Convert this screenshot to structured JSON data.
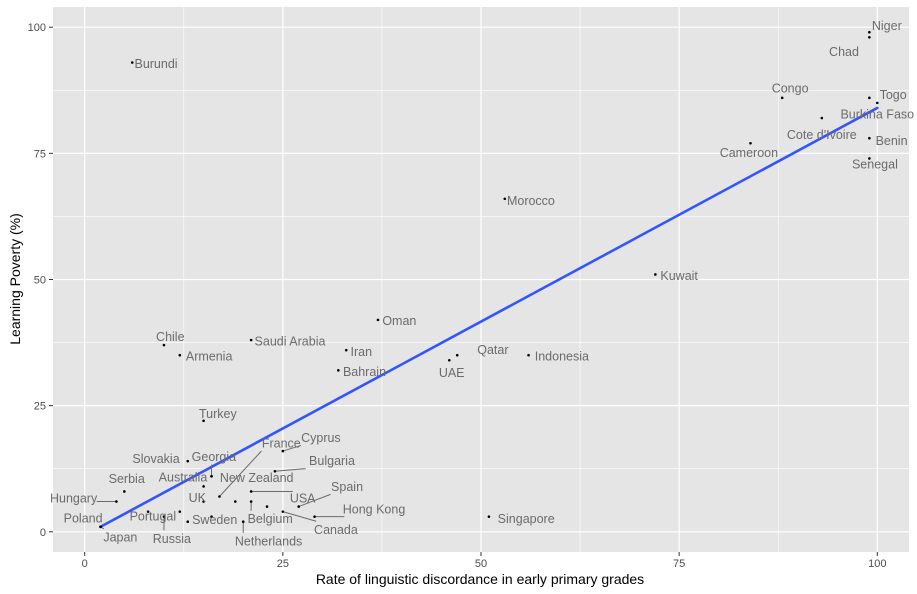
{
  "chart_data": {
    "type": "scatter",
    "xlabel": "Rate of linguistic discordance in early primary grades",
    "ylabel": "Learning Poverty (%)",
    "xlim": [
      -4,
      104
    ],
    "ylim": [
      -4,
      104
    ],
    "xticks": [
      0,
      25,
      50,
      75,
      100
    ],
    "yticks": [
      0,
      25,
      50,
      75,
      100
    ],
    "grid": true,
    "panel_background": "#e5e5e5",
    "grid_color": "#ffffff",
    "point_color": "#000000",
    "label_color": "#6b6b6b",
    "trend_line": {
      "color": "#3355ff",
      "x": [
        2,
        100
      ],
      "y": [
        1,
        84
      ]
    },
    "points": [
      {
        "label": "Niger",
        "x": 99,
        "y": 99,
        "lx": 101.2,
        "ly": 100.3,
        "leader": false
      },
      {
        "label": "Chad",
        "x": 99,
        "y": 98,
        "lx": 95.8,
        "ly": 95.2,
        "leader": false
      },
      {
        "label": "Burundi",
        "x": 6,
        "y": 93,
        "lx": 9.0,
        "ly": 92.8,
        "leader": false
      },
      {
        "label": "Congo",
        "x": 88,
        "y": 86,
        "lx": 89.0,
        "ly": 87.9,
        "leader": false
      },
      {
        "label": "Togo",
        "x": 99,
        "y": 86,
        "lx": 102.0,
        "ly": 86.7,
        "leader": false
      },
      {
        "label": "Burkina Faso",
        "x": 93,
        "y": 82,
        "lx": 100.0,
        "ly": 82.8,
        "leader": false
      },
      {
        "label": "Cote d'Ivoire",
        "x": 100,
        "y": 85,
        "lx": 93.0,
        "ly": 78.7,
        "leader": false
      },
      {
        "label": "Benin",
        "x": 99,
        "y": 78,
        "lx": 101.8,
        "ly": 77.5,
        "leader": false
      },
      {
        "label": "Cameroon",
        "x": 84,
        "y": 77,
        "lx": 83.8,
        "ly": 75.2,
        "leader": false
      },
      {
        "label": "Senegal",
        "x": 99,
        "y": 74,
        "lx": 99.7,
        "ly": 72.9,
        "leader": false
      },
      {
        "label": "Morocco",
        "x": 53,
        "y": 66,
        "lx": 56.3,
        "ly": 65.7,
        "leader": false
      },
      {
        "label": "Kuwait",
        "x": 72,
        "y": 51,
        "lx": 75.0,
        "ly": 50.8,
        "leader": false
      },
      {
        "label": "Oman",
        "x": 37,
        "y": 42,
        "lx": 39.7,
        "ly": 41.9,
        "leader": false
      },
      {
        "label": "Saudi Arabia",
        "x": 21,
        "y": 38,
        "lx": 25.9,
        "ly": 37.8,
        "leader": false
      },
      {
        "label": "Chile",
        "x": 10,
        "y": 37,
        "lx": 10.8,
        "ly": 38.7,
        "leader": false
      },
      {
        "label": "Iran",
        "x": 33,
        "y": 36,
        "lx": 34.9,
        "ly": 35.7,
        "leader": false
      },
      {
        "label": "Armenia",
        "x": 12,
        "y": 35,
        "lx": 15.7,
        "ly": 34.8,
        "leader": false
      },
      {
        "label": "Qatar",
        "x": 47,
        "y": 35,
        "lx": 51.5,
        "ly": 36.1,
        "leader": false
      },
      {
        "label": "Indonesia",
        "x": 56,
        "y": 35,
        "lx": 60.2,
        "ly": 34.8,
        "leader": false
      },
      {
        "label": "UAE",
        "x": 46,
        "y": 34,
        "lx": 46.3,
        "ly": 31.6,
        "leader": false
      },
      {
        "label": "Bahrain",
        "x": 32,
        "y": 32,
        "lx": 35.3,
        "ly": 31.8,
        "leader": false
      },
      {
        "label": "Turkey",
        "x": 15,
        "y": 22,
        "lx": 16.8,
        "ly": 23.4,
        "leader": false
      },
      {
        "label": "Cyprus",
        "x": 25,
        "y": 16,
        "lx": 29.8,
        "ly": 18.7,
        "leader": true
      },
      {
        "label": "France",
        "x": 17,
        "y": 7,
        "lx": 24.8,
        "ly": 17.6,
        "leader": true
      },
      {
        "label": "Slovakia",
        "x": 13,
        "y": 14,
        "lx": 9.0,
        "ly": 14.5,
        "leader": false
      },
      {
        "label": "Georgia",
        "x": 16,
        "y": 11,
        "lx": 16.3,
        "ly": 14.9,
        "leader": true
      },
      {
        "label": "Bulgaria",
        "x": 24,
        "y": 12,
        "lx": 31.2,
        "ly": 14.1,
        "leader": true
      },
      {
        "label": "Australia",
        "x": 15,
        "y": 9,
        "lx": 12.4,
        "ly": 10.9,
        "leader": true
      },
      {
        "label": "New Zealand",
        "x": 16,
        "y": 11,
        "lx": 21.7,
        "ly": 10.8,
        "leader": false
      },
      {
        "label": "Serbia",
        "x": 5,
        "y": 8,
        "lx": 5.3,
        "ly": 10.6,
        "leader": false
      },
      {
        "label": "Hungary",
        "x": 4,
        "y": 6,
        "lx": -1.4,
        "ly": 6.7,
        "leader": true
      },
      {
        "label": "UK",
        "x": 15,
        "y": 6,
        "lx": 14.2,
        "ly": 6.8,
        "leader": false
      },
      {
        "label": "USA",
        "x": 21,
        "y": 8,
        "lx": 27.5,
        "ly": 6.7,
        "leader": true
      },
      {
        "label": "Spain",
        "x": 27,
        "y": 5,
        "lx": 33.1,
        "ly": 9.0,
        "leader": true
      },
      {
        "label": "Hong Kong",
        "x": 29,
        "y": 3,
        "lx": 36.5,
        "ly": 4.5,
        "leader": true
      },
      {
        "label": "Portugal",
        "x": 8,
        "y": 4,
        "lx": 8.6,
        "ly": 3.1,
        "leader": false
      },
      {
        "label": "Poland",
        "x": 2,
        "y": 1,
        "lx": -0.2,
        "ly": 2.7,
        "leader": true
      },
      {
        "label": "Sweden",
        "x": 16,
        "y": 3,
        "lx": 16.4,
        "ly": 2.4,
        "leader": false
      },
      {
        "label": "Belgium",
        "x": 21,
        "y": 6,
        "lx": 23.4,
        "ly": 2.6,
        "leader": true
      },
      {
        "label": "Singapore",
        "x": 51,
        "y": 3,
        "lx": 55.7,
        "ly": 2.6,
        "leader": false
      },
      {
        "label": "Canada",
        "x": 25,
        "y": 4,
        "lx": 31.7,
        "ly": 0.5,
        "leader": true
      },
      {
        "label": "Japan",
        "x": 2,
        "y": 1,
        "lx": 4.5,
        "ly": -1.0,
        "leader": true
      },
      {
        "label": "Russia",
        "x": 10,
        "y": 3,
        "lx": 11.0,
        "ly": -1.3,
        "leader": true
      },
      {
        "label": "Netherlands",
        "x": 20,
        "y": 2,
        "lx": 23.2,
        "ly": -1.8,
        "leader": true
      },
      {
        "label": "",
        "x": 12,
        "y": 4,
        "leader": false
      },
      {
        "label": "",
        "x": 13,
        "y": 2,
        "leader": false
      },
      {
        "label": "",
        "x": 19,
        "y": 6,
        "leader": false
      },
      {
        "label": "",
        "x": 23,
        "y": 5,
        "leader": false
      }
    ]
  }
}
